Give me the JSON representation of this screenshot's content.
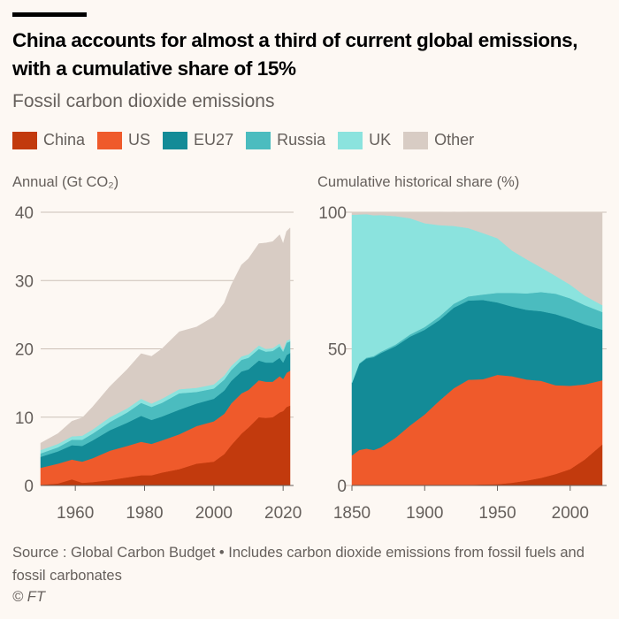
{
  "header": {
    "title": "China accounts for almost a third of current global emissions, with a cumulative share of 15%",
    "subtitle": "Fossil carbon dioxide emissions"
  },
  "legend": [
    {
      "label": "China",
      "color": "#c23a0d"
    },
    {
      "label": "US",
      "color": "#ef5a2b"
    },
    {
      "label": "EU27",
      "color": "#138b97"
    },
    {
      "label": "Russia",
      "color": "#4bbcbf"
    },
    {
      "label": "UK",
      "color": "#8be3de"
    },
    {
      "label": "Other",
      "color": "#d8ccc4"
    }
  ],
  "footer": {
    "source": "Source : Global Carbon Budget • Includes carbon dioxide emissions from fossil fuels and fossil carbonates",
    "copyright": "© FT"
  },
  "chart_data": [
    {
      "type": "area",
      "stacked": true,
      "title": "Annual (Gt CO₂)",
      "xlabel": "",
      "ylabel": "Annual (Gt CO₂)",
      "xlim": [
        1950,
        2022
      ],
      "ylim": [
        0,
        40
      ],
      "yticks": [
        0,
        10,
        20,
        30,
        40
      ],
      "xticks": [
        1960,
        1980,
        2000,
        2020
      ],
      "grid": true,
      "x": [
        1950,
        1955,
        1959,
        1962,
        1965,
        1970,
        1975,
        1979,
        1982,
        1985,
        1990,
        1995,
        2000,
        2003,
        2005,
        2008,
        2010,
        2013,
        2015,
        2017,
        2019,
        2020,
        2021,
        2022
      ],
      "series": [
        {
          "name": "China",
          "values": [
            0.1,
            0.3,
            0.9,
            0.4,
            0.5,
            0.8,
            1.2,
            1.5,
            1.5,
            1.9,
            2.4,
            3.2,
            3.5,
            4.6,
            5.9,
            7.6,
            8.5,
            10.0,
            9.9,
            10.0,
            10.7,
            10.9,
            11.5,
            11.7
          ]
        },
        {
          "name": "US",
          "values": [
            2.5,
            2.9,
            2.9,
            3.1,
            3.5,
            4.3,
            4.6,
            4.9,
            4.6,
            4.7,
            5.1,
            5.5,
            5.9,
            5.9,
            6.1,
            5.9,
            5.5,
            5.4,
            5.3,
            5.2,
            5.3,
            4.7,
            5.0,
            5.1
          ]
        },
        {
          "name": "EU27",
          "values": [
            1.6,
            1.8,
            2.1,
            2.3,
            2.6,
            3.0,
            3.4,
            3.8,
            3.5,
            3.5,
            3.6,
            3.3,
            3.3,
            3.4,
            3.3,
            3.2,
            3.0,
            2.9,
            2.8,
            2.8,
            2.7,
            2.4,
            2.6,
            2.6
          ]
        },
        {
          "name": "Russia",
          "values": [
            0.5,
            0.6,
            0.8,
            0.9,
            1.0,
            1.2,
            1.5,
            1.9,
            1.9,
            2.0,
            2.4,
            1.7,
            1.5,
            1.6,
            1.6,
            1.7,
            1.7,
            1.7,
            1.6,
            1.7,
            1.7,
            1.6,
            1.8,
            1.7
          ]
        },
        {
          "name": "UK",
          "values": [
            0.5,
            0.5,
            0.5,
            0.6,
            0.6,
            0.7,
            0.6,
            0.6,
            0.5,
            0.6,
            0.6,
            0.6,
            0.6,
            0.6,
            0.6,
            0.5,
            0.5,
            0.5,
            0.4,
            0.4,
            0.4,
            0.3,
            0.3,
            0.3
          ]
        },
        {
          "name": "Other",
          "values": [
            1.0,
            1.5,
            2.2,
            2.6,
            3.3,
            4.5,
            5.7,
            6.6,
            6.9,
            7.3,
            8.4,
            8.9,
            9.9,
            10.6,
            11.8,
            13.4,
            14.0,
            14.9,
            15.5,
            15.6,
            15.9,
            15.5,
            16.0,
            16.3
          ]
        }
      ]
    },
    {
      "type": "area",
      "stacked": true,
      "title": "Cumulative historical share (%)",
      "xlabel": "",
      "ylabel": "Cumulative historical share (%)",
      "xlim": [
        1850,
        2022
      ],
      "ylim": [
        0,
        100
      ],
      "yticks": [
        0,
        50,
        100
      ],
      "xticks": [
        1850,
        1900,
        1950,
        2000
      ],
      "grid": true,
      "x": [
        1850,
        1855,
        1860,
        1865,
        1870,
        1880,
        1890,
        1900,
        1910,
        1920,
        1930,
        1940,
        1950,
        1960,
        1970,
        1980,
        1990,
        2000,
        2010,
        2022
      ],
      "series": [
        {
          "name": "China",
          "values": [
            0,
            0,
            0,
            0,
            0,
            0,
            0,
            0,
            0,
            0.1,
            0.2,
            0.4,
            0.5,
            1.0,
            1.8,
            2.8,
            4.2,
            6.0,
            9.5,
            15.0
          ]
        },
        {
          "name": "US",
          "values": [
            11.0,
            13.0,
            13.5,
            13.0,
            14.0,
            17.5,
            22.0,
            26.0,
            31.0,
            35.5,
            38.5,
            38.5,
            40.0,
            39.0,
            37.0,
            35.5,
            32.5,
            30.5,
            27.5,
            23.5
          ]
        },
        {
          "name": "EU27",
          "values": [
            26.5,
            31.5,
            33.0,
            34.0,
            34.5,
            33.5,
            32.5,
            31.0,
            29.5,
            29.5,
            29.0,
            29.0,
            26.5,
            25.5,
            25.5,
            25.5,
            26.0,
            24.5,
            22.0,
            18.5
          ]
        },
        {
          "name": "Russia",
          "values": [
            0.1,
            0.2,
            0.3,
            0.4,
            0.5,
            0.6,
            0.8,
            1.0,
            1.3,
            1.4,
            1.5,
            2.0,
            3.5,
            5.0,
            6.0,
            7.0,
            7.5,
            7.5,
            7.0,
            6.5
          ]
        },
        {
          "name": "UK",
          "values": [
            61.5,
            54.5,
            52.5,
            51.5,
            50.0,
            47.0,
            42.5,
            38.0,
            33.5,
            28.5,
            25.0,
            22.5,
            20.0,
            15.5,
            12.5,
            9.0,
            6.5,
            5.0,
            3.5,
            2.5
          ]
        },
        {
          "name": "Other",
          "values": [
            0.9,
            0.8,
            0.7,
            1.1,
            1.0,
            1.4,
            2.2,
            4.0,
            4.7,
            5.1,
            5.8,
            7.6,
            9.5,
            14.0,
            17.2,
            20.2,
            23.3,
            26.5,
            30.5,
            34.0
          ]
        }
      ]
    }
  ]
}
